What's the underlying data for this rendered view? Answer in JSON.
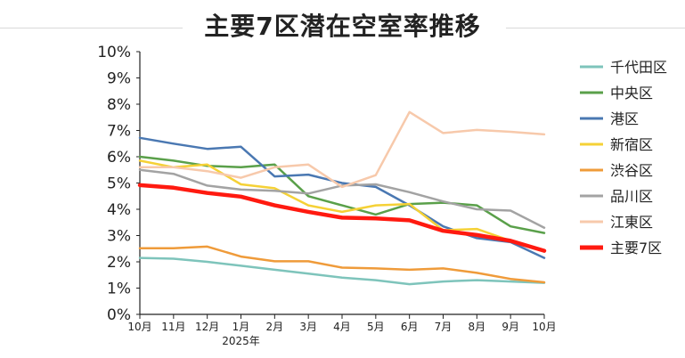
{
  "chart_data": {
    "type": "line",
    "title": "主要7区潜在空室率推移",
    "categories": [
      "10月",
      "11月",
      "12月",
      "1月",
      "2月",
      "3月",
      "4月",
      "5月",
      "6月",
      "7月",
      "8月",
      "9月",
      "10月"
    ],
    "year_label": "2025年",
    "y_ticks": [
      "0%",
      "1%",
      "2%",
      "3%",
      "4%",
      "5%",
      "6%",
      "7%",
      "8%",
      "9%",
      "10%"
    ],
    "ylim": [
      0,
      10
    ],
    "grid": false,
    "legend_position": "right",
    "series": [
      {
        "name": "千代田区",
        "color": "#7ec4bb",
        "width": 2.5,
        "values": [
          2.15,
          2.12,
          2.0,
          1.85,
          1.7,
          1.55,
          1.4,
          1.3,
          1.15,
          1.25,
          1.3,
          1.25,
          1.2
        ]
      },
      {
        "name": "中央区",
        "color": "#5aa04a",
        "width": 2.5,
        "values": [
          6.0,
          5.85,
          5.65,
          5.6,
          5.7,
          4.5,
          4.15,
          3.8,
          4.2,
          4.25,
          4.15,
          3.35,
          3.1
        ]
      },
      {
        "name": "港区",
        "color": "#4a78b2",
        "width": 2.5,
        "values": [
          6.72,
          6.5,
          6.3,
          6.38,
          5.25,
          5.32,
          5.0,
          4.85,
          4.15,
          3.35,
          2.9,
          2.75,
          2.15
        ]
      },
      {
        "name": "新宿区",
        "color": "#f5d136",
        "width": 2.5,
        "values": [
          5.85,
          5.6,
          5.7,
          4.95,
          4.8,
          4.15,
          3.9,
          4.15,
          4.2,
          3.2,
          3.25,
          2.8,
          2.4
        ]
      },
      {
        "name": "渋谷区",
        "color": "#ef9b3a",
        "width": 2.5,
        "values": [
          2.52,
          2.52,
          2.58,
          2.2,
          2.02,
          2.02,
          1.78,
          1.75,
          1.7,
          1.75,
          1.58,
          1.35,
          1.22
        ]
      },
      {
        "name": "品川区",
        "color": "#a3a3a3",
        "width": 2.5,
        "values": [
          5.5,
          5.35,
          4.9,
          4.75,
          4.7,
          4.6,
          4.9,
          4.95,
          4.65,
          4.3,
          4.0,
          3.95,
          3.3
        ]
      },
      {
        "name": "江東区",
        "color": "#f7c9ab",
        "width": 2.5,
        "values": [
          5.6,
          5.6,
          5.45,
          5.2,
          5.6,
          5.7,
          4.85,
          5.3,
          7.7,
          6.9,
          7.02,
          6.95,
          6.85
        ]
      },
      {
        "name": "主要7区",
        "color": "#ff1a10",
        "width": 4.5,
        "values": [
          4.92,
          4.82,
          4.62,
          4.48,
          4.15,
          3.9,
          3.68,
          3.65,
          3.58,
          3.18,
          3.02,
          2.8,
          2.42
        ]
      }
    ]
  }
}
